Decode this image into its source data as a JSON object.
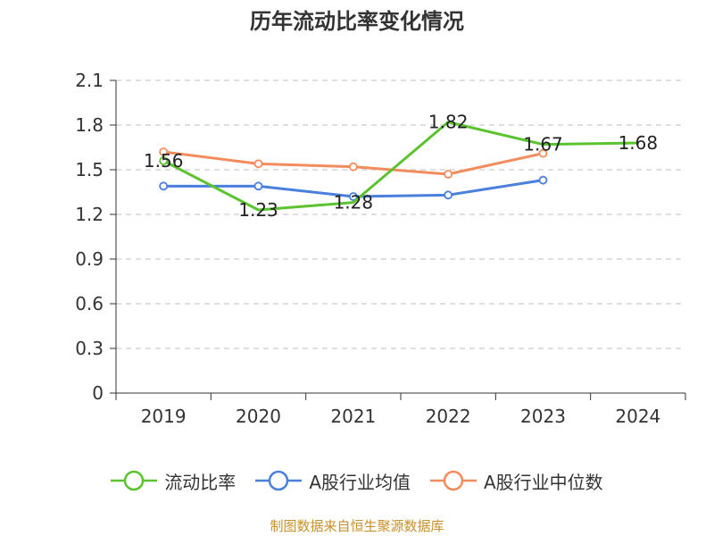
{
  "title": "历年流动比率变化情况",
  "source_note": "制图数据来自恒生聚源数据库",
  "chart_data": {
    "type": "line",
    "title": "历年流动比率变化情况",
    "xlabel": "",
    "ylabel": "",
    "categories": [
      "2019",
      "2020",
      "2021",
      "2022",
      "2023",
      "2024"
    ],
    "ylim": [
      0,
      2.1
    ],
    "yticks": [
      "0",
      "0.3",
      "0.6",
      "0.9",
      "1.2",
      "1.5",
      "1.8",
      "2.1"
    ],
    "grid": true,
    "legend_position": "bottom",
    "series": [
      {
        "name": "流动比率",
        "color": "#5bc32e",
        "values": [
          1.56,
          1.23,
          1.28,
          1.82,
          1.67,
          1.68
        ],
        "labels": [
          "1.56",
          "1.23",
          "1.28",
          "1.82",
          "1.67",
          "1.68"
        ],
        "markers": [
          true,
          false,
          false,
          false,
          false,
          false
        ]
      },
      {
        "name": "A股行业均值",
        "color": "#4a7fdc",
        "values": [
          1.39,
          1.39,
          1.32,
          1.33,
          1.43,
          null
        ],
        "labels": [],
        "markers": [
          true,
          true,
          true,
          true,
          true,
          false
        ]
      },
      {
        "name": "A股行业中位数",
        "color": "#f38c5c",
        "values": [
          1.62,
          1.54,
          1.52,
          1.47,
          1.61,
          null
        ],
        "labels": [],
        "markers": [
          true,
          true,
          true,
          true,
          true,
          false
        ]
      }
    ]
  }
}
